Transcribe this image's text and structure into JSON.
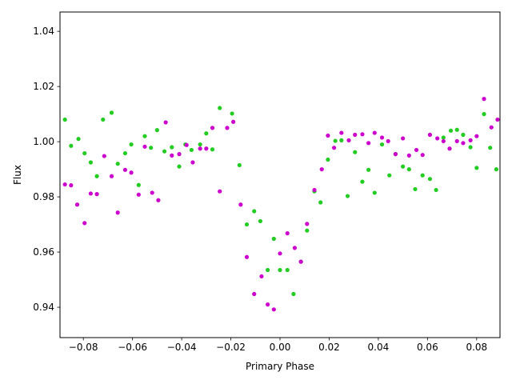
{
  "chart_data": {
    "type": "scatter",
    "title": "",
    "xlabel": "Primary Phase",
    "ylabel": "Flux",
    "xlim": [
      -0.0895,
      0.0895
    ],
    "ylim": [
      0.929,
      1.047
    ],
    "xticks": [
      -0.08,
      -0.06,
      -0.04,
      -0.02,
      0.0,
      0.02,
      0.04,
      0.06,
      0.08
    ],
    "xtick_labels": [
      "−0.08",
      "−0.06",
      "−0.04",
      "−0.02",
      "0.00",
      "0.02",
      "0.04",
      "0.06",
      "0.08"
    ],
    "yticks": [
      0.94,
      0.96,
      0.98,
      1.0,
      1.02,
      1.04
    ],
    "ytick_labels": [
      "0.94",
      "0.96",
      "0.98",
      "1.00",
      "1.02",
      "1.04"
    ],
    "grid": false,
    "legend": false,
    "series": [
      {
        "color": "#22cc22",
        "points": [
          [
            -0.0875,
            1.008
          ],
          [
            -0.085,
            0.9985
          ],
          [
            -0.082,
            1.001
          ],
          [
            -0.0795,
            0.9958
          ],
          [
            -0.077,
            0.9925
          ],
          [
            -0.0745,
            0.9875
          ],
          [
            -0.072,
            1.008
          ],
          [
            -0.0685,
            1.0105
          ],
          [
            -0.066,
            0.992
          ],
          [
            -0.063,
            0.9958
          ],
          [
            -0.0605,
            0.999
          ],
          [
            -0.0575,
            0.9843
          ],
          [
            -0.055,
            1.002
          ],
          [
            -0.0525,
            0.9978
          ],
          [
            -0.05,
            1.0042
          ],
          [
            -0.047,
            0.9965
          ],
          [
            -0.044,
            0.998
          ],
          [
            -0.041,
            0.991
          ],
          [
            -0.0385,
            0.999
          ],
          [
            -0.036,
            0.997
          ],
          [
            -0.0325,
            0.999
          ],
          [
            -0.03,
            1.003
          ],
          [
            -0.0275,
            0.9972
          ],
          [
            -0.0245,
            1.0122
          ],
          [
            -0.0195,
            1.0102
          ],
          [
            -0.0165,
            0.9915
          ],
          [
            -0.0135,
            0.97
          ],
          [
            -0.0105,
            0.9748
          ],
          [
            -0.008,
            0.9712
          ],
          [
            -0.005,
            0.9535
          ],
          [
            -0.0025,
            0.9648
          ],
          [
            0.0,
            0.9535
          ],
          [
            0.003,
            0.9535
          ],
          [
            0.0055,
            0.9448
          ],
          [
            0.0085,
            0.9565
          ],
          [
            0.011,
            0.9678
          ],
          [
            0.014,
            0.982
          ],
          [
            0.0165,
            0.978
          ],
          [
            0.0195,
            0.9935
          ],
          [
            0.0225,
            1.0003
          ],
          [
            0.025,
            1.0005
          ],
          [
            0.0275,
            0.9803
          ],
          [
            0.0305,
            0.9962
          ],
          [
            0.0335,
            0.9855
          ],
          [
            0.036,
            0.9898
          ],
          [
            0.0385,
            0.9815
          ],
          [
            0.0415,
            0.999
          ],
          [
            0.0445,
            0.9878
          ],
          [
            0.047,
            0.9955
          ],
          [
            0.05,
            0.991
          ],
          [
            0.0525,
            0.99
          ],
          [
            0.055,
            0.9828
          ],
          [
            0.058,
            0.9878
          ],
          [
            0.061,
            0.9865
          ],
          [
            0.0635,
            0.9825
          ],
          [
            0.0665,
            1.0015
          ],
          [
            0.0695,
            1.004
          ],
          [
            0.072,
            1.0043
          ],
          [
            0.0745,
            1.0025
          ],
          [
            0.0775,
            0.998
          ],
          [
            0.08,
            0.9905
          ],
          [
            0.083,
            1.01
          ],
          [
            0.0855,
            0.9978
          ],
          [
            0.088,
            0.99
          ]
        ]
      },
      {
        "color": "#cc00cc",
        "points": [
          [
            -0.0875,
            0.9845
          ],
          [
            -0.085,
            0.9842
          ],
          [
            -0.0825,
            0.9772
          ],
          [
            -0.0795,
            0.9705
          ],
          [
            -0.077,
            0.9812
          ],
          [
            -0.0745,
            0.981
          ],
          [
            -0.0715,
            0.9948
          ],
          [
            -0.0685,
            0.9875
          ],
          [
            -0.066,
            0.9743
          ],
          [
            -0.063,
            0.9898
          ],
          [
            -0.0605,
            0.9888
          ],
          [
            -0.0575,
            0.9808
          ],
          [
            -0.055,
            0.9982
          ],
          [
            -0.052,
            0.9815
          ],
          [
            -0.0495,
            0.9788
          ],
          [
            -0.0465,
            1.007
          ],
          [
            -0.044,
            0.995
          ],
          [
            -0.041,
            0.9955
          ],
          [
            -0.038,
            0.9988
          ],
          [
            -0.0355,
            0.9925
          ],
          [
            -0.0325,
            0.9975
          ],
          [
            -0.03,
            0.9975
          ],
          [
            -0.0275,
            1.005
          ],
          [
            -0.0245,
            0.982
          ],
          [
            -0.0215,
            1.005
          ],
          [
            -0.019,
            1.0072
          ],
          [
            -0.016,
            0.9772
          ],
          [
            -0.0135,
            0.9582
          ],
          [
            -0.0105,
            0.9448
          ],
          [
            -0.0075,
            0.9512
          ],
          [
            -0.005,
            0.941
          ],
          [
            -0.0025,
            0.9392
          ],
          [
            0.0,
            0.9595
          ],
          [
            0.003,
            0.9668
          ],
          [
            0.006,
            0.9615
          ],
          [
            0.0085,
            0.9565
          ],
          [
            0.011,
            0.9702
          ],
          [
            0.014,
            0.9825
          ],
          [
            0.017,
            0.99
          ],
          [
            0.0195,
            1.0022
          ],
          [
            0.022,
            0.9978
          ],
          [
            0.025,
            1.0032
          ],
          [
            0.028,
            1.0005
          ],
          [
            0.0305,
            1.0025
          ],
          [
            0.0335,
            1.0027
          ],
          [
            0.036,
            0.9995
          ],
          [
            0.0385,
            1.0032
          ],
          [
            0.0415,
            1.0015
          ],
          [
            0.044,
            1.0002
          ],
          [
            0.047,
            0.9955
          ],
          [
            0.05,
            1.0012
          ],
          [
            0.0525,
            0.995
          ],
          [
            0.0555,
            0.997
          ],
          [
            0.058,
            0.9952
          ],
          [
            0.061,
            1.0025
          ],
          [
            0.064,
            1.0012
          ],
          [
            0.0665,
            1.0002
          ],
          [
            0.069,
            0.9975
          ],
          [
            0.072,
            1.0002
          ],
          [
            0.0745,
            0.9995
          ],
          [
            0.0775,
            1.0005
          ],
          [
            0.08,
            1.002
          ],
          [
            0.083,
            1.0155
          ],
          [
            0.086,
            1.0052
          ],
          [
            0.0885,
            1.008
          ]
        ]
      }
    ]
  }
}
